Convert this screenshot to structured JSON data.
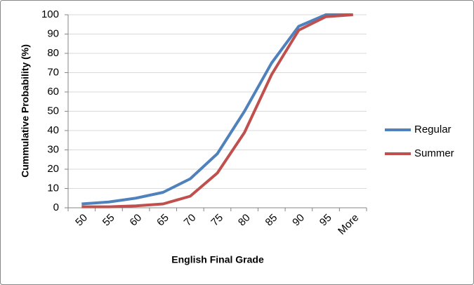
{
  "chart_data": {
    "type": "line",
    "x_label": "English Final Grade",
    "y_label": "Cummulative Probability (%)",
    "categories": [
      "50",
      "55",
      "60",
      "65",
      "70",
      "75",
      "80",
      "85",
      "90",
      "95",
      "More"
    ],
    "series": [
      {
        "name": "Regular",
        "color": "#4f81bd",
        "values": [
          2,
          3,
          5,
          8,
          15,
          28,
          50,
          75,
          94,
          100,
          100
        ]
      },
      {
        "name": "Summer",
        "color": "#c0504d",
        "values": [
          0.5,
          0.5,
          1,
          2,
          6,
          18,
          39,
          69,
          92,
          99,
          100
        ]
      }
    ],
    "ylim": [
      0,
      100
    ],
    "yticks": [
      0,
      10,
      20,
      30,
      40,
      50,
      60,
      70,
      80,
      90,
      100
    ],
    "grid": true,
    "legend": "right"
  }
}
